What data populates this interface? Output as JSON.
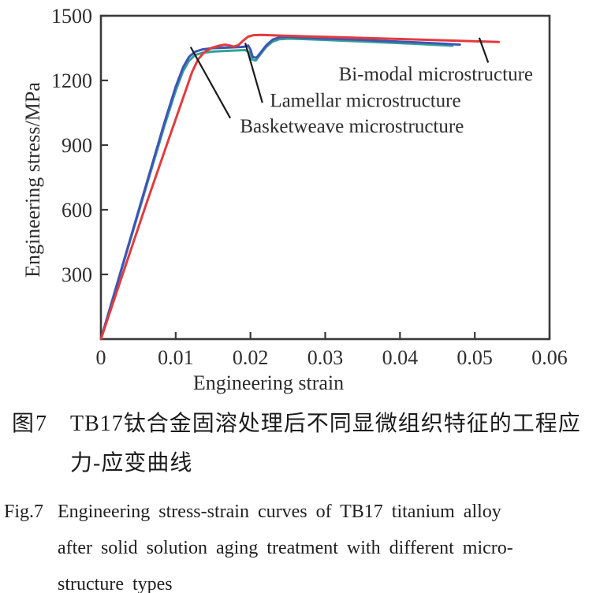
{
  "chart_data": {
    "type": "line",
    "title": "",
    "xlabel": "Engineering strain",
    "ylabel": "Engineering stress/MPa",
    "xlim": [
      0,
      0.06
    ],
    "ylim": [
      0,
      1500
    ],
    "grid": false,
    "frame": true,
    "axis_color": "#3a3a3a",
    "text_color": "#2d2d2d",
    "leader_color": "#1c1c1c",
    "xticks": [
      [
        0,
        "0"
      ],
      [
        0.01,
        "0.01"
      ],
      [
        0.02,
        "0.02"
      ],
      [
        0.03,
        "0.03"
      ],
      [
        0.04,
        "0.04"
      ],
      [
        0.05,
        "0.05"
      ],
      [
        0.06,
        "0.06"
      ]
    ],
    "yticks": [
      [
        300,
        "300"
      ],
      [
        600,
        "600"
      ],
      [
        900,
        "900"
      ],
      [
        1200,
        "1200"
      ],
      [
        1500,
        "1500"
      ]
    ],
    "series": [
      {
        "name": "Basketweave microstructure",
        "slug": "basketweave",
        "color": "#35a093",
        "points": [
          [
            0,
            0
          ],
          [
            0.003,
            350
          ],
          [
            0.006,
            700
          ],
          [
            0.0085,
            990
          ],
          [
            0.01,
            1152
          ],
          [
            0.011,
            1244
          ],
          [
            0.0118,
            1292
          ],
          [
            0.0126,
            1318
          ],
          [
            0.0136,
            1328
          ],
          [
            0.015,
            1334
          ],
          [
            0.0165,
            1337
          ],
          [
            0.018,
            1339
          ],
          [
            0.0193,
            1341
          ],
          [
            0.0199,
            1330
          ],
          [
            0.0202,
            1298
          ],
          [
            0.0207,
            1292
          ],
          [
            0.0213,
            1320
          ],
          [
            0.0221,
            1355
          ],
          [
            0.0229,
            1379
          ],
          [
            0.0238,
            1391
          ],
          [
            0.0252,
            1394
          ],
          [
            0.027,
            1392
          ],
          [
            0.03,
            1388
          ],
          [
            0.034,
            1382
          ],
          [
            0.038,
            1376
          ],
          [
            0.042,
            1370
          ],
          [
            0.0455,
            1364
          ],
          [
            0.047,
            1361
          ]
        ]
      },
      {
        "name": "Lamellar microstructure",
        "slug": "lamellar",
        "color": "#3f55b5",
        "points": [
          [
            0,
            0
          ],
          [
            0.003,
            355
          ],
          [
            0.006,
            710
          ],
          [
            0.0085,
            1005
          ],
          [
            0.01,
            1170
          ],
          [
            0.011,
            1262
          ],
          [
            0.0118,
            1310
          ],
          [
            0.0126,
            1333
          ],
          [
            0.0136,
            1344
          ],
          [
            0.015,
            1350
          ],
          [
            0.0165,
            1352
          ],
          [
            0.018,
            1354
          ],
          [
            0.0191,
            1356
          ],
          [
            0.0197,
            1362
          ],
          [
            0.02,
            1343
          ],
          [
            0.0203,
            1309
          ],
          [
            0.0208,
            1305
          ],
          [
            0.0214,
            1331
          ],
          [
            0.0222,
            1366
          ],
          [
            0.023,
            1390
          ],
          [
            0.0239,
            1400
          ],
          [
            0.025,
            1402
          ],
          [
            0.027,
            1398
          ],
          [
            0.03,
            1394
          ],
          [
            0.034,
            1389
          ],
          [
            0.038,
            1383
          ],
          [
            0.042,
            1377
          ],
          [
            0.046,
            1370
          ],
          [
            0.048,
            1366
          ]
        ]
      },
      {
        "name": "Bi-modal microstructure",
        "slug": "bi-modal",
        "color": "#e23b3e",
        "points": [
          [
            0,
            0
          ],
          [
            0.003,
            310
          ],
          [
            0.006,
            620
          ],
          [
            0.009,
            920
          ],
          [
            0.0105,
            1070
          ],
          [
            0.0115,
            1170
          ],
          [
            0.0122,
            1240
          ],
          [
            0.013,
            1298
          ],
          [
            0.0138,
            1330
          ],
          [
            0.0148,
            1351
          ],
          [
            0.0158,
            1361
          ],
          [
            0.0166,
            1366
          ],
          [
            0.0172,
            1362
          ],
          [
            0.0178,
            1357
          ],
          [
            0.0184,
            1364
          ],
          [
            0.019,
            1384
          ],
          [
            0.0197,
            1403
          ],
          [
            0.0204,
            1410
          ],
          [
            0.0215,
            1411
          ],
          [
            0.024,
            1408
          ],
          [
            0.028,
            1404
          ],
          [
            0.032,
            1400
          ],
          [
            0.036,
            1396
          ],
          [
            0.04,
            1392
          ],
          [
            0.044,
            1388
          ],
          [
            0.048,
            1384
          ],
          [
            0.0515,
            1380
          ],
          [
            0.0532,
            1378
          ]
        ]
      }
    ],
    "annotations": [
      {
        "text": "Bi-modal microstructure",
        "slug": "bi-modal",
        "line": {
          "x1": 0.0506,
          "y1": 1398,
          "x2": 0.0518,
          "y2": 1283
        },
        "label": {
          "x": 0.0318,
          "y": 1200,
          "anchor": "start"
        }
      },
      {
        "text": "Lamellar microstructure",
        "slug": "lamellar",
        "line": {
          "x1": 0.0193,
          "y1": 1374,
          "x2": 0.0216,
          "y2": 1096
        },
        "label": {
          "x": 0.0226,
          "y": 1078,
          "anchor": "start"
        }
      },
      {
        "text": "Basketweave microstructure",
        "slug": "basketweave",
        "line": {
          "x1": 0.012,
          "y1": 1355,
          "x2": 0.0173,
          "y2": 1025
        },
        "label": {
          "x": 0.0186,
          "y": 958,
          "anchor": "start"
        }
      }
    ]
  },
  "captions": {
    "zh": {
      "label": "图7",
      "line1": "TB17钛合金固溶处理后不同显微组织特征的工程应",
      "line2": "力-应变曲线"
    },
    "en": {
      "label": "Fig.7",
      "line1": "Engineering stress-strain curves of TB17 titanium alloy",
      "line2": "after solid solution aging treatment with different micro-",
      "line3": "structure types"
    }
  }
}
